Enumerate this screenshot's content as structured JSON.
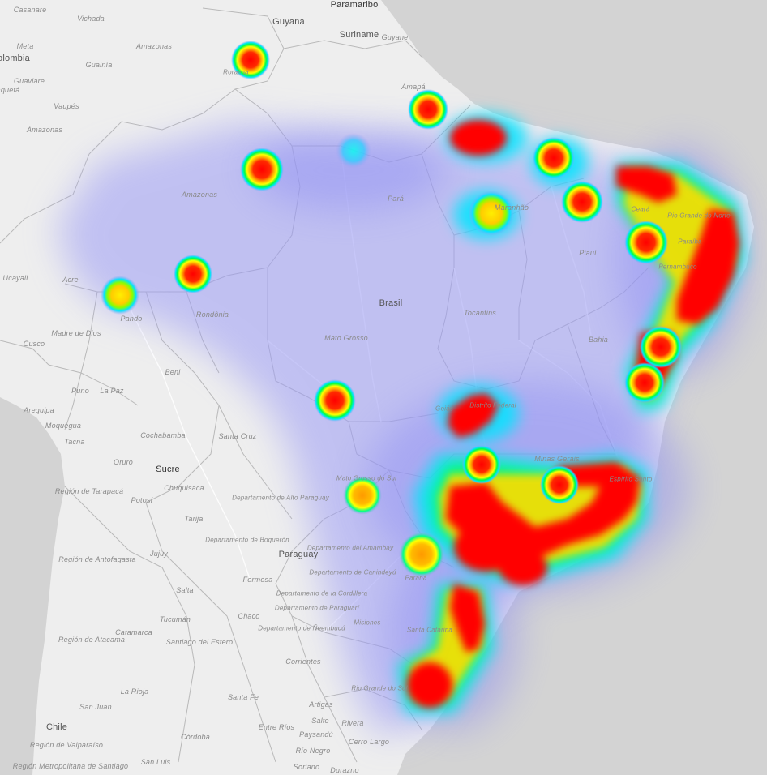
{
  "map": {
    "colors": {
      "land": "#eeeeee",
      "ocean": "#d3d3d3",
      "border": "#b9b9b9",
      "road": "#ffffff"
    },
    "heat_gradient": [
      "#9b9bf5",
      "#00ffff",
      "#00ff33",
      "#ffff00",
      "#ff9900",
      "#ff0000"
    ]
  },
  "labels": {
    "casanare": "Casanare",
    "vichada": "Vichada",
    "guyana": "Guyana",
    "paramaribo": "Paramaribo",
    "suriname": "Suriname",
    "guyane": "Guyane",
    "meta": "Meta",
    "colombia": "olombia",
    "amazonas_co": "Amazonas",
    "guainia": "Guainía",
    "guaviare": "Guaviare",
    "roraima": "Roraima",
    "caqueta": "aquetá",
    "amapa": "Amapá",
    "vaupes": "Vaupés",
    "amazonas_co2": "Amazonas",
    "amazonas_br": "Amazonas",
    "para": "Pará",
    "maranhao": "Maranhão",
    "ceara": "Ceará",
    "rio_grande_norte": "Rio Grande do Norte",
    "paraiba": "Paraíba",
    "pernambuco": "Pernambuco",
    "piaui": "Piauí",
    "ucayali": "Ucayali",
    "acre": "Acre",
    "brasil": "Brasil",
    "tocantins": "Tocantins",
    "pando": "Pando",
    "rondonia": "Rondônia",
    "madre_de_dios": "Madre de Dios",
    "cusco": "Cusco",
    "mato_grosso": "Mato Grosso",
    "bahia": "Bahia",
    "beni": "Beni",
    "puno": "Puno",
    "la_paz": "La Paz",
    "goias": "Goiás",
    "distrito_federal": "Distrito Federal",
    "arequipa": "Arequipa",
    "moquegua": "Moquegua",
    "tacna": "Tacna",
    "cochabamba": "Cochabamba",
    "santa_cruz": "Santa Cruz",
    "minas_gerais": "Minas Gerais",
    "espirito_santo": "Espírito Santo",
    "oruro": "Oruro",
    "sucre": "Sucre",
    "mato_grosso_sul": "Mato Grosso do Sul",
    "tarapaca": "Región de Tarapacá",
    "chuquisaca": "Chuquisaca",
    "alto_paraguay": "Departamento de Alto Paraguay",
    "potosi": "Potosí",
    "tarija": "Tarija",
    "boqueron": "Departamento de Boquerón",
    "amambay": "Departamento del Amambay",
    "paraguay": "Paraguay",
    "antofagasta": "Región de Antofagasta",
    "jujuy": "Jujuy",
    "formosa": "Formosa",
    "canindeyu": "Departamento de Canindeyú",
    "parana": "Paraná",
    "salta": "Salta",
    "cordillera": "Departamento de la Cordillera",
    "paraguari": "Departamento de Paraguarí",
    "chaco": "Chaco",
    "tucuman": "Tucumán",
    "neembucu": "Departamento de Ñeembucú",
    "misiones": "Misiones",
    "catamarca": "Catamarca",
    "santa_catarina": "Santa Catarina",
    "atacama": "Región de Atacama",
    "santiago_estero": "Santiago del Estero",
    "corrientes": "Corrientes",
    "rio_grande_sul": "Rio Grande do Sul",
    "la_rioja": "La Rioja",
    "santa_fe": "Santa Fe",
    "san_juan": "San Juan",
    "artigas": "Artigas",
    "salto": "Salto",
    "rivera": "Rivera",
    "entre_rios": "Entre Ríos",
    "paysandu": "Paysandú",
    "chile": "Chile",
    "cordoba": "Córdoba",
    "cerro_largo": "Cerro Largo",
    "valparaiso": "Región de Valparaíso",
    "rio_negro": "Río Negro",
    "metropolitana": "Región Metropolitana de Santiago",
    "san_luis": "San Luis",
    "soriano": "Soriano",
    "durazno": "Durazno"
  }
}
